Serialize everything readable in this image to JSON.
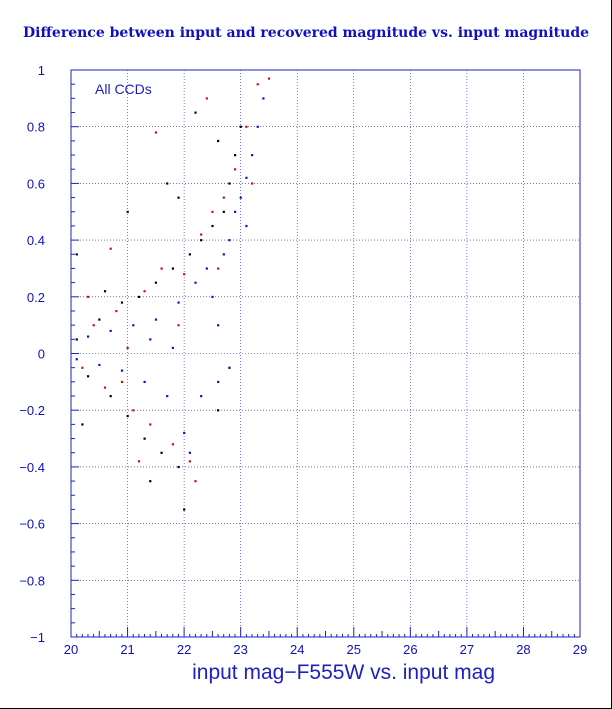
{
  "chart_data": {
    "type": "scatter",
    "title": "Difference between input and recovered magnitude vs. input magnitude",
    "xlabel": "input mag−F555W vs. input mag",
    "ylabel": "",
    "annotation": "All CCDs",
    "xlim": [
      20,
      29
    ],
    "ylim": [
      -1,
      1
    ],
    "xticks": [
      20,
      21,
      22,
      23,
      24,
      25,
      26,
      27,
      28,
      29
    ],
    "yticks": [
      -1,
      -0.8,
      -0.6,
      -0.4,
      -0.2,
      0,
      0.2,
      0.4,
      0.6,
      0.8,
      1
    ],
    "grid": true,
    "legend": "none",
    "series": [
      {
        "color": "#000000",
        "points": [
          [
            20.1,
            0.05
          ],
          [
            20.3,
            -0.08
          ],
          [
            20.5,
            0.12
          ],
          [
            20.7,
            -0.15
          ],
          [
            20.9,
            0.18
          ],
          [
            21.0,
            -0.22
          ],
          [
            21.2,
            0.2
          ],
          [
            21.3,
            -0.3
          ],
          [
            21.5,
            0.25
          ],
          [
            21.6,
            -0.35
          ],
          [
            21.8,
            0.3
          ],
          [
            21.9,
            -0.4
          ],
          [
            22.0,
            -0.55
          ],
          [
            22.1,
            0.35
          ],
          [
            22.3,
            0.4
          ],
          [
            22.5,
            0.45
          ],
          [
            22.6,
            -0.2
          ],
          [
            22.7,
            0.5
          ],
          [
            22.8,
            0.6
          ],
          [
            22.9,
            0.7
          ],
          [
            21.0,
            0.5
          ],
          [
            21.7,
            0.6
          ],
          [
            22.2,
            0.85
          ],
          [
            20.1,
            0.35
          ],
          [
            21.4,
            -0.45
          ],
          [
            21.9,
            0.55
          ],
          [
            22.6,
            0.75
          ],
          [
            23.0,
            0.8
          ],
          [
            20.2,
            -0.25
          ],
          [
            20.6,
            0.22
          ]
        ]
      },
      {
        "color": "#d01010",
        "points": [
          [
            20.2,
            -0.05
          ],
          [
            20.4,
            0.1
          ],
          [
            20.6,
            -0.12
          ],
          [
            20.8,
            0.15
          ],
          [
            21.0,
            0.02
          ],
          [
            21.1,
            -0.2
          ],
          [
            21.3,
            0.22
          ],
          [
            21.4,
            -0.25
          ],
          [
            21.6,
            0.3
          ],
          [
            21.8,
            -0.32
          ],
          [
            22.0,
            0.28
          ],
          [
            22.1,
            -0.38
          ],
          [
            22.2,
            -0.45
          ],
          [
            22.3,
            0.42
          ],
          [
            22.5,
            0.5
          ],
          [
            22.7,
            0.55
          ],
          [
            22.9,
            0.65
          ],
          [
            23.1,
            0.8
          ],
          [
            23.3,
            0.95
          ],
          [
            23.5,
            0.97
          ],
          [
            21.5,
            0.78
          ],
          [
            20.7,
            0.37
          ],
          [
            22.4,
            0.9
          ],
          [
            21.2,
            -0.38
          ],
          [
            22.8,
            -0.05
          ],
          [
            20.3,
            0.2
          ],
          [
            21.9,
            0.1
          ],
          [
            22.6,
            0.3
          ],
          [
            23.2,
            0.6
          ],
          [
            20.9,
            -0.1
          ]
        ]
      },
      {
        "color": "#1010d0",
        "points": [
          [
            20.1,
            -0.02
          ],
          [
            20.3,
            0.06
          ],
          [
            20.5,
            -0.04
          ],
          [
            20.7,
            0.08
          ],
          [
            20.9,
            -0.06
          ],
          [
            21.1,
            0.1
          ],
          [
            21.3,
            -0.1
          ],
          [
            21.5,
            0.12
          ],
          [
            21.7,
            -0.15
          ],
          [
            21.9,
            0.18
          ],
          [
            22.0,
            -0.28
          ],
          [
            22.1,
            -0.35
          ],
          [
            22.2,
            0.25
          ],
          [
            22.4,
            0.3
          ],
          [
            22.5,
            0.2
          ],
          [
            22.6,
            -0.1
          ],
          [
            22.7,
            0.35
          ],
          [
            22.8,
            0.4
          ],
          [
            22.9,
            0.5
          ],
          [
            23.0,
            0.55
          ],
          [
            23.1,
            0.62
          ],
          [
            23.2,
            0.7
          ],
          [
            23.3,
            0.8
          ],
          [
            23.4,
            0.9
          ],
          [
            22.3,
            -0.15
          ],
          [
            21.8,
            0.02
          ],
          [
            22.6,
            0.1
          ],
          [
            22.8,
            -0.05
          ],
          [
            23.1,
            0.45
          ],
          [
            21.4,
            0.05
          ]
        ]
      }
    ]
  }
}
